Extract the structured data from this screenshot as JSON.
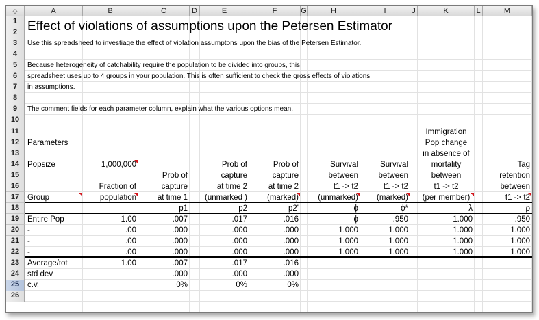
{
  "columns": [
    "A",
    "B",
    "C",
    "D",
    "E",
    "F",
    "G",
    "H",
    "I",
    "J",
    "K",
    "L",
    "M"
  ],
  "corner_icon": "diamond-arrows-icon",
  "rows": [
    "1",
    "2",
    "3",
    "4",
    "5",
    "6",
    "7",
    "8",
    "9",
    "10",
    "11",
    "12",
    "13",
    "14",
    "15",
    "16",
    "17",
    "18",
    "19",
    "20",
    "21",
    "22",
    "23",
    "24",
    "25",
    "26"
  ],
  "selected_row": "25",
  "title": "Effect of violations of assumptions upon the Petersen Estimator",
  "notes": {
    "r3": "Use this spreadsheed to investiage the effect of violation assumptons upon the bias of the Petersen Estimator.",
    "r5": "Because heterogeneity of catchability require the population to be divided into groups, this",
    "r6": "spreadsheet uses up to 4 groups in your population. This is often sufficient to check the gross effects of violations",
    "r7": "in assumptions.",
    "r9": "The comment fields for each parameter column, explain what the various options mean."
  },
  "labels": {
    "parameters": "Parameters",
    "popsize": "Popsize",
    "popsize_value": "1,000,000",
    "group": "Group"
  },
  "headers": {
    "B": [
      "Fraction of",
      "population"
    ],
    "C": [
      "Prob of",
      "capture",
      "at time 1"
    ],
    "E": [
      "Prob of",
      "capture",
      "at time 2",
      "(unmarked )"
    ],
    "F": [
      "Prob of",
      "capture",
      "at time 2",
      "(marked)"
    ],
    "H": [
      "Survival",
      "between",
      "t1 -> t2",
      "(unmarked)"
    ],
    "I": [
      "Survival",
      "between",
      "t1 -> t2",
      "(marked)"
    ],
    "K": [
      "Immigration",
      "Pop change",
      "in absence of",
      "mortality",
      "between",
      "t1 -> t2",
      "(per member)"
    ],
    "M": [
      "Tag",
      "retention",
      "between",
      "t1 -> t2"
    ]
  },
  "symbols": {
    "C": "p1",
    "E": "p2",
    "F": "p2'",
    "H": "ϕ",
    "I": "ϕ*",
    "K": "λ",
    "M": "ρ"
  },
  "groups": [
    {
      "name": "Entire Pop",
      "B": "1.00",
      "C": ".007",
      "E": ".017",
      "F": ".016",
      "H": "ϕ",
      "I": ".950",
      "K": "1.000",
      "M": ".950"
    },
    {
      "name": "-",
      "B": ".00",
      "C": ".000",
      "E": ".000",
      "F": ".000",
      "H": "1.000",
      "I": "1.000",
      "K": "1.000",
      "M": "1.000"
    },
    {
      "name": "-",
      "B": ".00",
      "C": ".000",
      "E": ".000",
      "F": ".000",
      "H": "1.000",
      "I": "1.000",
      "K": "1.000",
      "M": "1.000"
    },
    {
      "name": "-",
      "B": ".00",
      "C": ".000",
      "E": ".000",
      "F": ".000",
      "H": "1.000",
      "I": "1.000",
      "K": "1.000",
      "M": "1.000"
    }
  ],
  "summary": [
    {
      "name": "Average/tot",
      "B": "1.00",
      "C": ".007",
      "E": ".017",
      "F": ".016"
    },
    {
      "name": "std dev",
      "B": "",
      "C": ".000",
      "E": ".000",
      "F": ".000"
    },
    {
      "name": "c.v.",
      "B": "",
      "C": "0%",
      "E": "0%",
      "F": "0%"
    }
  ]
}
